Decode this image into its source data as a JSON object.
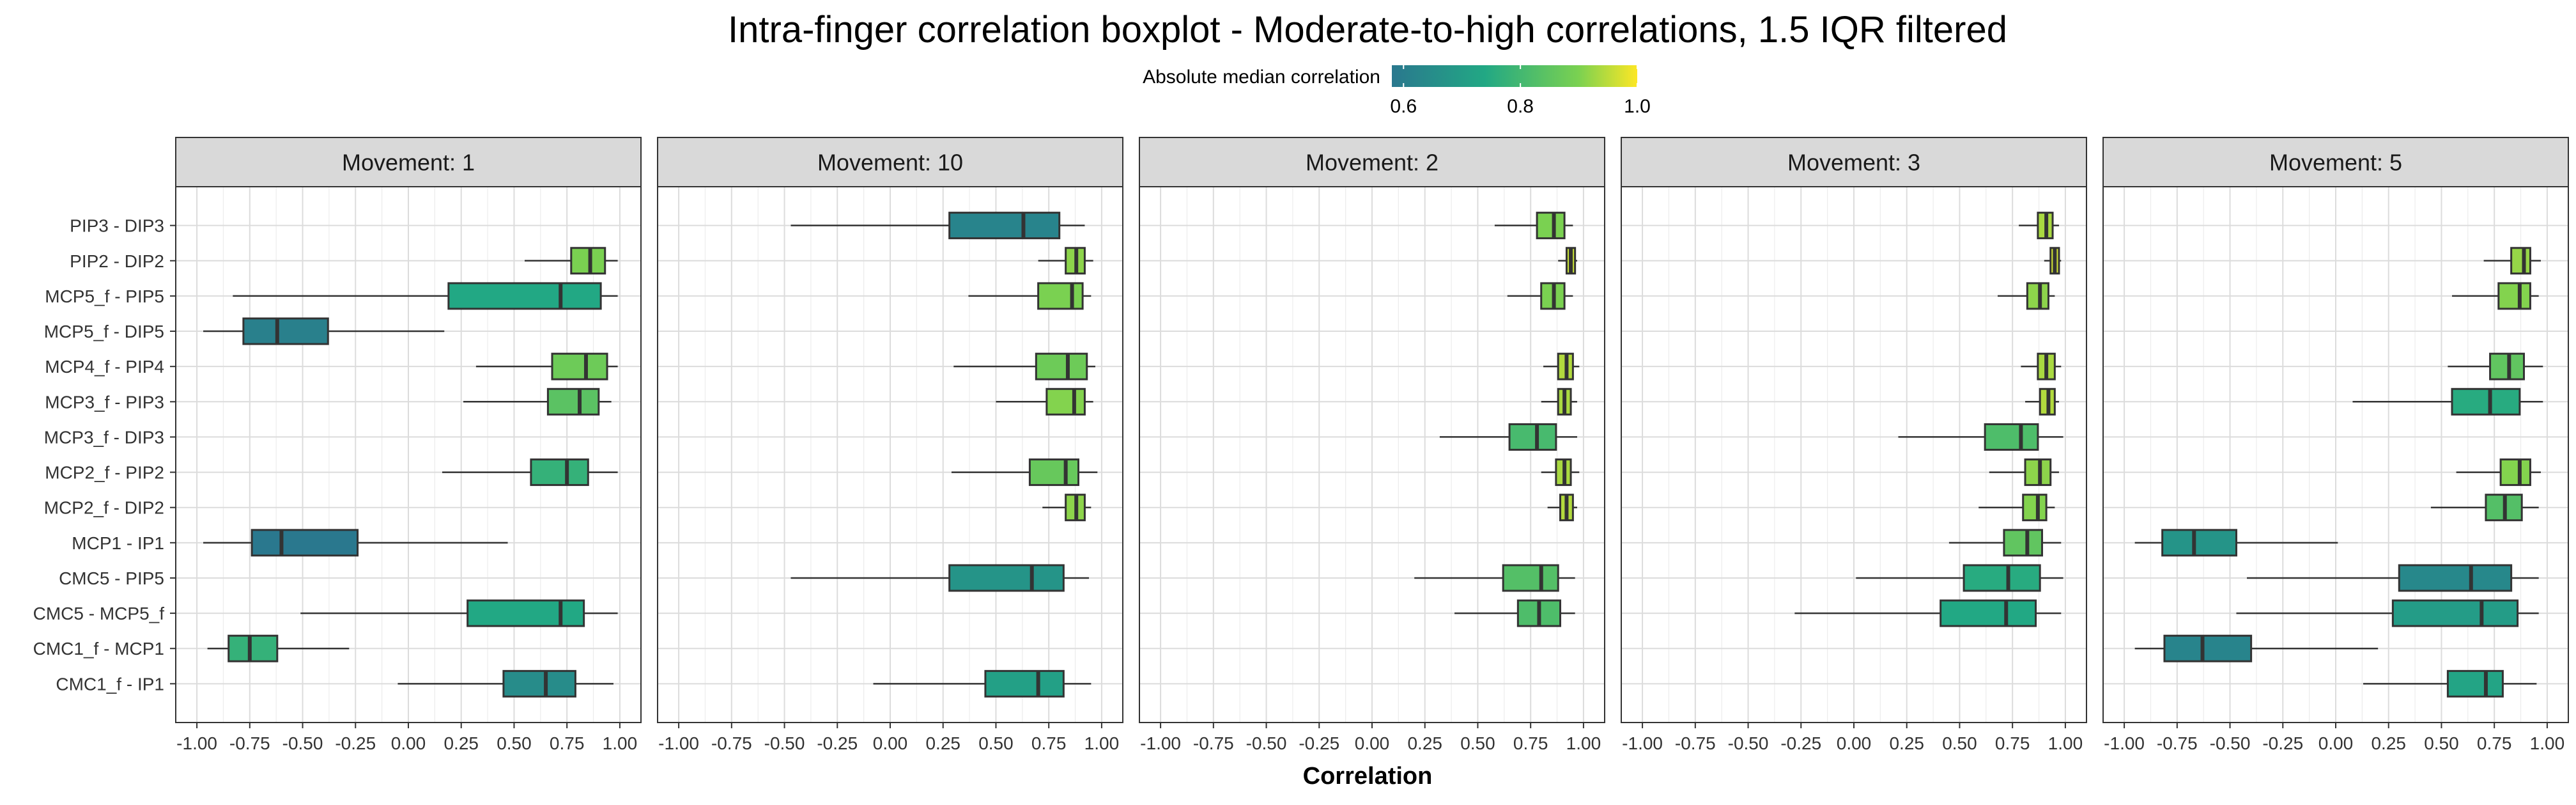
{
  "chart_data": {
    "type": "boxplot",
    "title": "Intra-finger correlation boxplot - Moderate-to-high correlations, 1.5 IQR filtered",
    "xlabel": "Correlation",
    "ylabel": "",
    "xlim": [
      -1.0,
      1.0
    ],
    "x_ticks": [
      "-1.00",
      "-0.75",
      "-0.50",
      "-0.25",
      "0.00",
      "0.25",
      "0.50",
      "0.75",
      "1.00"
    ],
    "grid": true,
    "categories": [
      "PIP3 - DIP3",
      "PIP2 - DIP2",
      "MCP5_f - PIP5",
      "MCP5_f - DIP5",
      "MCP4_f - PIP4",
      "MCP3_f - PIP3",
      "MCP3_f - DIP3",
      "MCP2_f - PIP2",
      "MCP2_f - DIP2",
      "MCP1 - IP1",
      "CMC5 - PIP5",
      "CMC5 - MCP5_f",
      "CMC1_f - MCP1",
      "CMC1_f - IP1"
    ],
    "legend": {
      "title": "Absolute median correlation",
      "position": "top",
      "ticks": [
        "0.6",
        "0.8",
        "1.0"
      ],
      "range": [
        0.58,
        1.0
      ],
      "colors": [
        "#2a788e",
        "#22a884",
        "#7ad151",
        "#fde725"
      ]
    },
    "facets": [
      {
        "label": "Movement: 1",
        "boxes": [
          {
            "category": "PIP3 - DIP3",
            "present": false
          },
          {
            "category": "PIP2 - DIP2",
            "present": true,
            "min": 0.55,
            "q1": 0.77,
            "median": 0.86,
            "q3": 0.93,
            "max": 0.99
          },
          {
            "category": "MCP5_f - PIP5",
            "present": true,
            "min": -0.83,
            "q1": 0.19,
            "median": 0.72,
            "q3": 0.91,
            "max": 0.99
          },
          {
            "category": "MCP5_f - DIP5",
            "present": true,
            "min": -0.97,
            "q1": -0.78,
            "median": -0.62,
            "q3": -0.38,
            "max": 0.17
          },
          {
            "category": "MCP4_f - PIP4",
            "present": true,
            "min": 0.32,
            "q1": 0.68,
            "median": 0.84,
            "q3": 0.94,
            "max": 0.99
          },
          {
            "category": "MCP3_f - PIP3",
            "present": true,
            "min": 0.26,
            "q1": 0.66,
            "median": 0.81,
            "q3": 0.9,
            "max": 0.96
          },
          {
            "category": "MCP3_f - DIP3",
            "present": false
          },
          {
            "category": "MCP2_f - PIP2",
            "present": true,
            "min": 0.16,
            "q1": 0.58,
            "median": 0.75,
            "q3": 0.85,
            "max": 0.99
          },
          {
            "category": "MCP2_f - DIP2",
            "present": false
          },
          {
            "category": "MCP1 - IP1",
            "present": true,
            "min": -0.97,
            "q1": -0.74,
            "median": -0.6,
            "q3": -0.24,
            "max": 0.47
          },
          {
            "category": "CMC5 - PIP5",
            "present": false
          },
          {
            "category": "CMC5 - MCP5_f",
            "present": true,
            "min": -0.51,
            "q1": 0.28,
            "median": 0.72,
            "q3": 0.83,
            "max": 0.99
          },
          {
            "category": "CMC1_f - MCP1",
            "present": true,
            "min": -0.95,
            "q1": -0.85,
            "median": -0.75,
            "q3": -0.62,
            "max": -0.28
          },
          {
            "category": "CMC1_f - IP1",
            "present": true,
            "min": -0.05,
            "q1": 0.45,
            "median": 0.65,
            "q3": 0.79,
            "max": 0.97
          }
        ]
      },
      {
        "label": "Movement: 10",
        "boxes": [
          {
            "category": "PIP3 - DIP3",
            "present": true,
            "min": -0.47,
            "q1": 0.28,
            "median": 0.63,
            "q3": 0.8,
            "max": 0.92
          },
          {
            "category": "PIP2 - DIP2",
            "present": true,
            "min": 0.7,
            "q1": 0.83,
            "median": 0.88,
            "q3": 0.92,
            "max": 0.96
          },
          {
            "category": "MCP5_f - PIP5",
            "present": true,
            "min": 0.37,
            "q1": 0.7,
            "median": 0.86,
            "q3": 0.91,
            "max": 0.95
          },
          {
            "category": "MCP5_f - DIP5",
            "present": false
          },
          {
            "category": "MCP4_f - PIP4",
            "present": true,
            "min": 0.3,
            "q1": 0.69,
            "median": 0.84,
            "q3": 0.93,
            "max": 0.97
          },
          {
            "category": "MCP3_f - PIP3",
            "present": true,
            "min": 0.5,
            "q1": 0.74,
            "median": 0.87,
            "q3": 0.92,
            "max": 0.96
          },
          {
            "category": "MCP3_f - DIP3",
            "present": false
          },
          {
            "category": "MCP2_f - PIP2",
            "present": true,
            "min": 0.29,
            "q1": 0.66,
            "median": 0.83,
            "q3": 0.89,
            "max": 0.98
          },
          {
            "category": "MCP2_f - DIP2",
            "present": true,
            "min": 0.72,
            "q1": 0.83,
            "median": 0.88,
            "q3": 0.92,
            "max": 0.95
          },
          {
            "category": "MCP1 - IP1",
            "present": false
          },
          {
            "category": "CMC5 - PIP5",
            "present": true,
            "min": -0.47,
            "q1": 0.28,
            "median": 0.67,
            "q3": 0.82,
            "max": 0.94
          },
          {
            "category": "CMC5 - MCP5_f",
            "present": false
          },
          {
            "category": "CMC1_f - MCP1",
            "present": false
          },
          {
            "category": "CMC1_f - IP1",
            "present": true,
            "min": -0.08,
            "q1": 0.45,
            "median": 0.7,
            "q3": 0.82,
            "max": 0.95
          }
        ]
      },
      {
        "label": "Movement: 2",
        "boxes": [
          {
            "category": "PIP3 - DIP3",
            "present": true,
            "min": 0.58,
            "q1": 0.78,
            "median": 0.86,
            "q3": 0.91,
            "max": 0.95
          },
          {
            "category": "PIP2 - DIP2",
            "present": true,
            "min": 0.88,
            "q1": 0.92,
            "median": 0.94,
            "q3": 0.96,
            "max": 0.97
          },
          {
            "category": "MCP5_f - PIP5",
            "present": true,
            "min": 0.64,
            "q1": 0.8,
            "median": 0.86,
            "q3": 0.91,
            "max": 0.95
          },
          {
            "category": "MCP5_f - DIP5",
            "present": false
          },
          {
            "category": "MCP4_f - PIP4",
            "present": true,
            "min": 0.81,
            "q1": 0.88,
            "median": 0.92,
            "q3": 0.95,
            "max": 0.98
          },
          {
            "category": "MCP3_f - PIP3",
            "present": true,
            "min": 0.8,
            "q1": 0.88,
            "median": 0.91,
            "q3": 0.94,
            "max": 0.97
          },
          {
            "category": "MCP3_f - DIP3",
            "present": true,
            "min": 0.32,
            "q1": 0.65,
            "median": 0.78,
            "q3": 0.87,
            "max": 0.97
          },
          {
            "category": "MCP2_f - PIP2",
            "present": true,
            "min": 0.8,
            "q1": 0.87,
            "median": 0.91,
            "q3": 0.94,
            "max": 0.98
          },
          {
            "category": "MCP2_f - DIP2",
            "present": true,
            "min": 0.83,
            "q1": 0.89,
            "median": 0.92,
            "q3": 0.95,
            "max": 0.97
          },
          {
            "category": "MCP1 - IP1",
            "present": false
          },
          {
            "category": "CMC5 - PIP5",
            "present": true,
            "min": 0.2,
            "q1": 0.62,
            "median": 0.8,
            "q3": 0.88,
            "max": 0.96
          },
          {
            "category": "CMC5 - MCP5_f",
            "present": true,
            "min": 0.39,
            "q1": 0.69,
            "median": 0.79,
            "q3": 0.89,
            "max": 0.96
          },
          {
            "category": "CMC1_f - MCP1",
            "present": false
          },
          {
            "category": "CMC1_f - IP1",
            "present": false
          }
        ]
      },
      {
        "label": "Movement: 3",
        "boxes": [
          {
            "category": "PIP3 - DIP3",
            "present": true,
            "min": 0.78,
            "q1": 0.87,
            "median": 0.91,
            "q3": 0.94,
            "max": 0.97
          },
          {
            "category": "PIP2 - DIP2",
            "present": true,
            "min": 0.9,
            "q1": 0.93,
            "median": 0.95,
            "q3": 0.97,
            "max": 0.98
          },
          {
            "category": "MCP5_f - PIP5",
            "present": true,
            "min": 0.68,
            "q1": 0.82,
            "median": 0.88,
            "q3": 0.92,
            "max": 0.95
          },
          {
            "category": "MCP5_f - DIP5",
            "present": false
          },
          {
            "category": "MCP4_f - PIP4",
            "present": true,
            "min": 0.79,
            "q1": 0.87,
            "median": 0.91,
            "q3": 0.95,
            "max": 0.98
          },
          {
            "category": "MCP3_f - PIP3",
            "present": true,
            "min": 0.81,
            "q1": 0.88,
            "median": 0.92,
            "q3": 0.95,
            "max": 0.97
          },
          {
            "category": "MCP3_f - DIP3",
            "present": true,
            "min": 0.21,
            "q1": 0.62,
            "median": 0.79,
            "q3": 0.87,
            "max": 0.99
          },
          {
            "category": "MCP2_f - PIP2",
            "present": true,
            "min": 0.64,
            "q1": 0.81,
            "median": 0.88,
            "q3": 0.93,
            "max": 0.97
          },
          {
            "category": "MCP2_f - DIP2",
            "present": true,
            "min": 0.59,
            "q1": 0.8,
            "median": 0.87,
            "q3": 0.91,
            "max": 0.95
          },
          {
            "category": "MCP1 - IP1",
            "present": true,
            "min": 0.45,
            "q1": 0.71,
            "median": 0.82,
            "q3": 0.89,
            "max": 0.98
          },
          {
            "category": "CMC5 - PIP5",
            "present": true,
            "min": 0.01,
            "q1": 0.52,
            "median": 0.73,
            "q3": 0.88,
            "max": 0.99
          },
          {
            "category": "CMC5 - MCP5_f",
            "present": true,
            "min": -0.28,
            "q1": 0.41,
            "median": 0.72,
            "q3": 0.86,
            "max": 0.98
          },
          {
            "category": "CMC1_f - MCP1",
            "present": false
          },
          {
            "category": "CMC1_f - IP1",
            "present": false
          }
        ]
      },
      {
        "label": "Movement: 5",
        "boxes": [
          {
            "category": "PIP3 - DIP3",
            "present": false
          },
          {
            "category": "PIP2 - DIP2",
            "present": true,
            "min": 0.7,
            "q1": 0.83,
            "median": 0.89,
            "q3": 0.92,
            "max": 0.97
          },
          {
            "category": "MCP5_f - PIP5",
            "present": true,
            "min": 0.55,
            "q1": 0.77,
            "median": 0.87,
            "q3": 0.92,
            "max": 0.96
          },
          {
            "category": "MCP5_f - DIP5",
            "present": false
          },
          {
            "category": "MCP4_f - PIP4",
            "present": true,
            "min": 0.53,
            "q1": 0.73,
            "median": 0.82,
            "q3": 0.89,
            "max": 0.98
          },
          {
            "category": "MCP3_f - PIP3",
            "present": true,
            "min": 0.08,
            "q1": 0.55,
            "median": 0.73,
            "q3": 0.87,
            "max": 0.98
          },
          {
            "category": "MCP3_f - DIP3",
            "present": false
          },
          {
            "category": "MCP2_f - PIP2",
            "present": true,
            "min": 0.57,
            "q1": 0.78,
            "median": 0.87,
            "q3": 0.92,
            "max": 0.97
          },
          {
            "category": "MCP2_f - DIP2",
            "present": true,
            "min": 0.45,
            "q1": 0.71,
            "median": 0.8,
            "q3": 0.88,
            "max": 0.96
          },
          {
            "category": "MCP1 - IP1",
            "present": true,
            "min": -0.95,
            "q1": -0.82,
            "median": -0.67,
            "q3": -0.47,
            "max": 0.01
          },
          {
            "category": "CMC5 - PIP5",
            "present": true,
            "min": -0.42,
            "q1": 0.3,
            "median": 0.64,
            "q3": 0.83,
            "max": 0.96
          },
          {
            "category": "CMC5 - MCP5_f",
            "present": true,
            "min": -0.47,
            "q1": 0.27,
            "median": 0.69,
            "q3": 0.86,
            "max": 0.96
          },
          {
            "category": "CMC1_f - MCP1",
            "present": true,
            "min": -0.95,
            "q1": -0.81,
            "median": -0.63,
            "q3": -0.4,
            "max": 0.2
          },
          {
            "category": "CMC1_f - IP1",
            "present": true,
            "min": 0.13,
            "q1": 0.53,
            "median": 0.71,
            "q3": 0.79,
            "max": 0.95
          }
        ]
      }
    ]
  }
}
